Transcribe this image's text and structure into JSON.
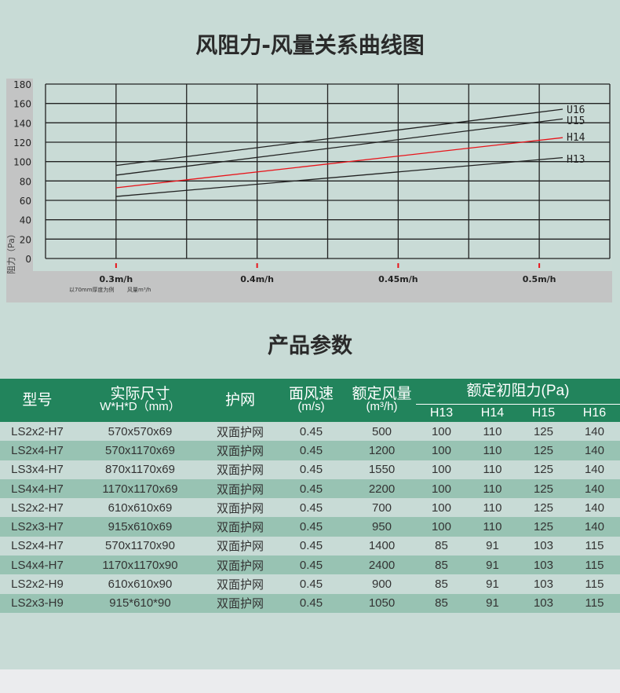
{
  "title": "风阻力-风量关系曲线图",
  "section_title": "产品参数",
  "chart_data": {
    "type": "line",
    "ylabel": "阻力（Pa）",
    "xlabel": "风量m³/h",
    "note": "以70mm厚度为例",
    "ylim": [
      0,
      180
    ],
    "yticks": [
      0,
      20,
      40,
      60,
      80,
      100,
      120,
      140,
      160,
      180
    ],
    "xticks": [
      "0.3m/h",
      "0.4m/h",
      "0.45m/h",
      "0.5m/h"
    ],
    "grid": true,
    "series": [
      {
        "name": "U16",
        "color": "#222222",
        "x": [
          "0.3m/h",
          "0.5m/h"
        ],
        "y": [
          96,
          151
        ]
      },
      {
        "name": "U15",
        "color": "#222222",
        "x": [
          "0.3m/h",
          "0.5m/h"
        ],
        "y": [
          86,
          141
        ]
      },
      {
        "name": "H14",
        "color": "#e8141a",
        "x": [
          "0.3m/h",
          "0.5m/h"
        ],
        "y": [
          73,
          122
        ]
      },
      {
        "name": "H13",
        "color": "#222222",
        "x": [
          "0.3m/h",
          "0.5m/h"
        ],
        "y": [
          64,
          102
        ]
      }
    ]
  },
  "table": {
    "headers": {
      "model": "型号",
      "size": "实际尺寸",
      "size_sub": "W*H*D（mm）",
      "mesh": "护网",
      "speed": "面风速",
      "speed_sub": "(m/s)",
      "flow": "额定风量",
      "flow_sub": "(m³/h)",
      "resist": "额定初阻力(Pa)",
      "grades": [
        "H13",
        "H14",
        "H15",
        "H16"
      ]
    },
    "rows": [
      [
        "LS2x2-H7",
        "570x570x69",
        "双面护网",
        "0.45",
        "500",
        "100",
        "110",
        "125",
        "140"
      ],
      [
        "LS2x4-H7",
        "570x1170x69",
        "双面护网",
        "0.45",
        "1200",
        "100",
        "110",
        "125",
        "140"
      ],
      [
        "LS3x4-H7",
        "870x1170x69",
        "双面护网",
        "0.45",
        "1550",
        "100",
        "110",
        "125",
        "140"
      ],
      [
        "LS4x4-H7",
        "1170x1170x69",
        "双面护网",
        "0.45",
        "2200",
        "100",
        "110",
        "125",
        "140"
      ],
      [
        "LS2x2-H7",
        "610x610x69",
        "双面护网",
        "0.45",
        "700",
        "100",
        "110",
        "125",
        "140"
      ],
      [
        "LS2x3-H7",
        "915x610x69",
        "双面护网",
        "0.45",
        "950",
        "100",
        "110",
        "125",
        "140"
      ],
      [
        "LS2x4-H7",
        "570x1170x90",
        "双面护网",
        "0.45",
        "1400",
        "85",
        "91",
        "103",
        "115"
      ],
      [
        "LS4x4-H7",
        "1170x1170x90",
        "双面护网",
        "0.45",
        "2400",
        "85",
        "91",
        "103",
        "115"
      ],
      [
        "LS2x2-H9",
        "610x610x90",
        "双面护网",
        "0.45",
        "900",
        "85",
        "91",
        "103",
        "115"
      ],
      [
        "LS2x3-H9",
        "915*610*90",
        "双面护网",
        "0.45",
        "1050",
        "85",
        "91",
        "103",
        "115"
      ]
    ]
  }
}
